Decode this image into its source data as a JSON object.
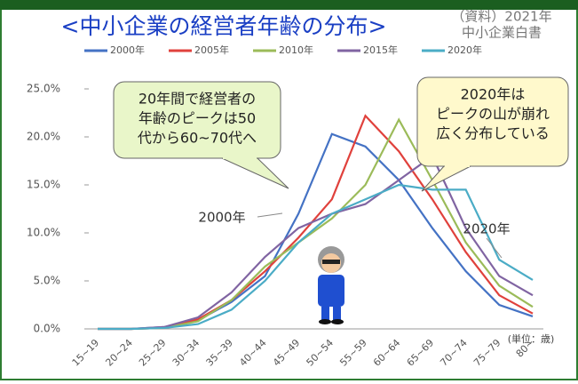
{
  "chart_data": {
    "type": "line",
    "title": "<中小企業の経営者年齢の分布>",
    "source": [
      "（資料）2021年",
      "中小企業白書"
    ],
    "unit_label": "(単位：歳)",
    "categories": [
      "15~19",
      "20~24",
      "25~29",
      "30~34",
      "35~39",
      "40~44",
      "45~49",
      "50~54",
      "55~59",
      "60~64",
      "65~69",
      "70~74",
      "75~79",
      "80~"
    ],
    "series": [
      {
        "name": "2000年",
        "color": "#4472c4",
        "values": [
          0,
          0,
          0.2,
          0.9,
          2.8,
          5.5,
          12,
          20.3,
          19,
          15.5,
          10.5,
          6,
          2.5,
          1.3
        ]
      },
      {
        "name": "2005年",
        "color": "#e0413c",
        "values": [
          0,
          0,
          0.1,
          1,
          3,
          6,
          9.5,
          13.5,
          22.2,
          18.5,
          13.5,
          8,
          3.5,
          1.6
        ]
      },
      {
        "name": "2010年",
        "color": "#9bbb59",
        "values": [
          0,
          0,
          0.1,
          0.8,
          3,
          6.5,
          9,
          11.5,
          15,
          21.8,
          15.5,
          9,
          4.5,
          2.3
        ]
      },
      {
        "name": "2015年",
        "color": "#8064a2",
        "values": [
          0,
          0,
          0.2,
          1.2,
          3.8,
          7.5,
          10.5,
          12,
          13,
          15.5,
          18,
          10.5,
          5.5,
          3.5
        ]
      },
      {
        "name": "2020年",
        "color": "#4bacc6",
        "values": [
          0,
          0,
          0.1,
          0.5,
          2,
          5,
          9,
          12,
          13.5,
          15,
          14.5,
          14.5,
          7.2,
          5.1
        ]
      }
    ],
    "ylim": [
      0,
      25
    ],
    "yticks": [
      {
        "value": 0,
        "label": "0.0%"
      },
      {
        "value": 5,
        "label": "5.0%"
      },
      {
        "value": 10,
        "label": "10.0%"
      },
      {
        "value": 15,
        "label": "15.0%"
      },
      {
        "value": 20,
        "label": "20.0%"
      },
      {
        "value": 25,
        "label": "25.0%"
      }
    ],
    "callouts": [
      {
        "lines": [
          "20年間で経営者の",
          "年齢のピークは50",
          "代から60~70代へ"
        ]
      },
      {
        "lines": [
          "2020年は",
          "ピークの山が崩れ",
          "広く分布している"
        ]
      }
    ],
    "annotations": [
      "2000年",
      "2020年"
    ]
  }
}
